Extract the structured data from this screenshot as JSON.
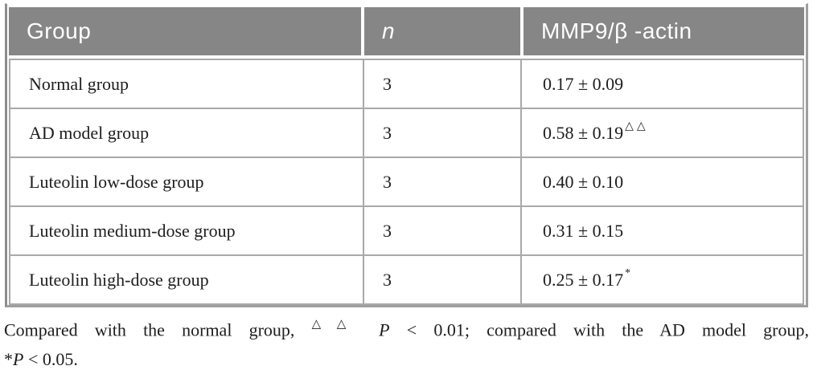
{
  "table": {
    "columns": [
      {
        "label": "Group"
      },
      {
        "label": "n"
      },
      {
        "label": "MMP9/β -actin"
      }
    ],
    "rows": [
      {
        "group": "Normal group",
        "n": "3",
        "value": "0.17 ± 0.09",
        "sup": ""
      },
      {
        "group": "AD model group",
        "n": "3",
        "value": "0.58 ± 0.19",
        "sup": "△△"
      },
      {
        "group": "Luteolin low-dose group",
        "n": "3",
        "value": "0.40 ± 0.10",
        "sup": ""
      },
      {
        "group": "Luteolin medium-dose group",
        "n": "3",
        "value": "0.31 ± 0.15",
        "sup": ""
      },
      {
        "group": "Luteolin high-dose group",
        "n": "3",
        "value": "0.25 ± 0.17",
        "sup": "*"
      }
    ]
  },
  "footnote": {
    "line1": [
      {
        "t": "Compared with the normal group, "
      },
      {
        "t": "△△",
        "s": "sup"
      },
      {
        "t": " "
      },
      {
        "t": "P",
        "s": "i"
      },
      {
        "t": " < 0.01; compared with the AD model group,"
      }
    ],
    "line2": [
      {
        "t": "*"
      },
      {
        "t": "P",
        "s": "i"
      },
      {
        "t": " < 0.05."
      }
    ]
  },
  "colors": {
    "header_bg": "#868686",
    "header_text": "#ffffff",
    "body_text": "#1d1d1d",
    "grid_line": "#a9a9a9",
    "outer_border": "#9e9e9e"
  }
}
